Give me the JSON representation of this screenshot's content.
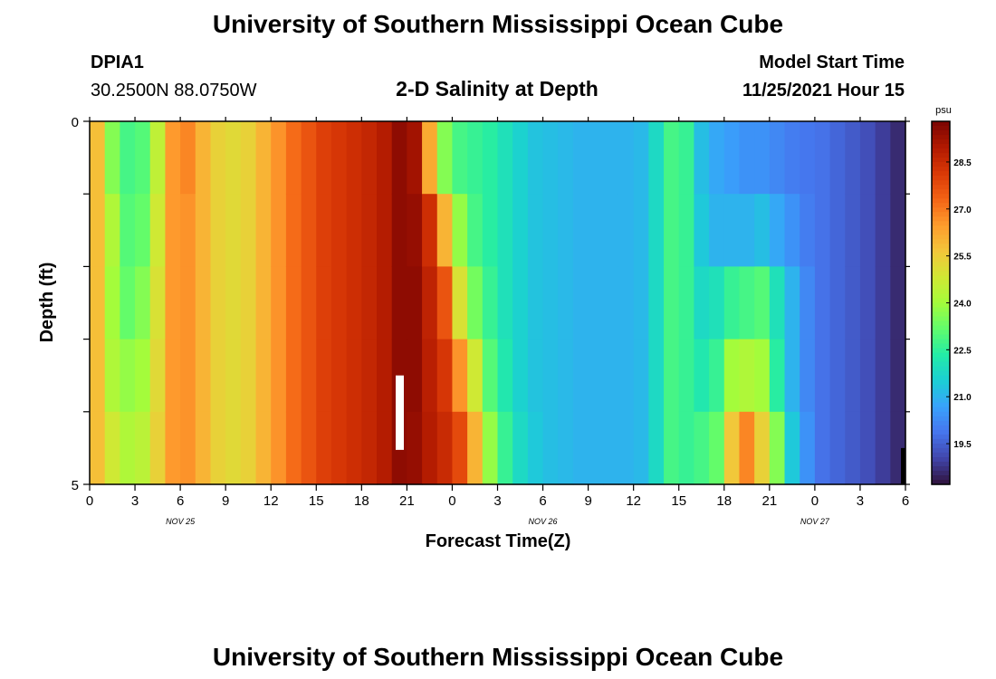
{
  "page": {
    "title": "University of Southern Mississippi Ocean Cube",
    "footer_title": "University of Southern Mississippi Ocean Cube"
  },
  "station": {
    "id": "DPIA1",
    "coords": "30.2500N  88.0750W"
  },
  "model": {
    "label": "Model Start Time",
    "start": "11/25/2021 Hour 15"
  },
  "colors": {
    "missing_bar": "#ffffff",
    "edge_bar": "#000000"
  },
  "chart_data": {
    "type": "heatmap",
    "title": "2-D Salinity at Depth",
    "xlabel": "Forecast Time(Z)",
    "ylabel": "Depth (ft)",
    "x_ticks": [
      "0",
      "3",
      "6",
      "9",
      "12",
      "15",
      "18",
      "21",
      "0",
      "3",
      "6",
      "9",
      "12",
      "15",
      "18",
      "21",
      "0",
      "3",
      "6"
    ],
    "date_labels": [
      {
        "text": "NOV 25",
        "tick_index": 2
      },
      {
        "text": "NOV 26",
        "tick_index": 10
      },
      {
        "text": "NOV 27",
        "tick_index": 16
      }
    ],
    "y_ticks": [
      "0",
      "5"
    ],
    "ylim": [
      0,
      5
    ],
    "x_hours": [
      0,
      54
    ],
    "depth_levels": 5,
    "colorbar": {
      "unit": "psu",
      "min": 18.2,
      "max": 29.8,
      "ticks": [
        "28.5",
        "27.0",
        "25.5",
        "24.0",
        "22.5",
        "21.0",
        "19.5"
      ],
      "colormap": [
        "#30123b",
        "#4145ab",
        "#4675ed",
        "#39a2fc",
        "#1bcfd4",
        "#24eca6",
        "#61fc6c",
        "#a4fc3b",
        "#d1e834",
        "#f3c63a",
        "#fe9b2d",
        "#f36315",
        "#d93806",
        "#b11901",
        "#7a0402"
      ]
    },
    "salinity_time_columns": [
      {
        "hour": 0,
        "values": [
          25.8,
          25.8,
          25.8,
          25.8,
          25.8
        ]
      },
      {
        "hour": 1,
        "values": [
          23.6,
          24.2,
          24.0,
          24.2,
          24.8
        ]
      },
      {
        "hour": 2,
        "values": [
          22.8,
          23.0,
          23.2,
          23.8,
          24.2
        ]
      },
      {
        "hour": 3,
        "values": [
          23.0,
          23.2,
          23.6,
          24.0,
          24.4
        ]
      },
      {
        "hour": 4,
        "values": [
          24.5,
          24.8,
          25.0,
          25.2,
          25.4
        ]
      },
      {
        "hour": 5,
        "values": [
          26.5,
          26.5,
          26.5,
          26.5,
          26.5
        ]
      },
      {
        "hour": 6,
        "values": [
          26.8,
          26.6,
          26.6,
          26.6,
          26.6
        ]
      },
      {
        "hour": 7,
        "values": [
          26.0,
          26.0,
          26.0,
          26.0,
          26.0
        ]
      },
      {
        "hour": 8,
        "values": [
          25.4,
          25.4,
          25.4,
          25.4,
          25.4
        ]
      },
      {
        "hour": 9,
        "values": [
          25.2,
          25.2,
          25.2,
          25.2,
          25.2
        ]
      },
      {
        "hour": 10,
        "values": [
          25.4,
          25.4,
          25.4,
          25.4,
          25.4
        ]
      },
      {
        "hour": 11,
        "values": [
          26.0,
          26.0,
          26.0,
          26.0,
          26.0
        ]
      },
      {
        "hour": 12,
        "values": [
          26.6,
          26.6,
          26.6,
          26.6,
          26.6
        ]
      },
      {
        "hour": 13,
        "values": [
          27.2,
          27.2,
          27.2,
          27.2,
          27.2
        ]
      },
      {
        "hour": 14,
        "values": [
          27.6,
          27.6,
          27.6,
          27.6,
          27.6
        ]
      },
      {
        "hour": 15,
        "values": [
          28.0,
          28.0,
          28.0,
          28.0,
          28.0
        ]
      },
      {
        "hour": 16,
        "values": [
          28.2,
          28.2,
          28.2,
          28.2,
          28.2
        ]
      },
      {
        "hour": 17,
        "values": [
          28.4,
          28.4,
          28.4,
          28.4,
          28.4
        ]
      },
      {
        "hour": 18,
        "values": [
          28.6,
          28.6,
          28.6,
          28.6,
          28.6
        ]
      },
      {
        "hour": 19,
        "values": [
          28.9,
          28.9,
          28.9,
          28.9,
          28.9
        ]
      },
      {
        "hour": 20,
        "values": [
          29.5,
          29.5,
          29.5,
          29.5,
          29.5
        ]
      },
      {
        "hour": 21,
        "values": [
          29.2,
          29.4,
          29.5,
          29.5,
          29.4
        ]
      },
      {
        "hour": 22,
        "values": [
          26.2,
          28.4,
          28.7,
          28.8,
          28.9
        ]
      },
      {
        "hour": 23,
        "values": [
          23.6,
          26.0,
          27.6,
          28.2,
          28.5
        ]
      },
      {
        "hour": 24,
        "values": [
          22.8,
          23.8,
          25.0,
          26.6,
          27.8
        ]
      },
      {
        "hour": 25,
        "values": [
          22.6,
          22.8,
          23.4,
          24.8,
          26.0
        ]
      },
      {
        "hour": 26,
        "values": [
          22.4,
          22.4,
          22.6,
          23.0,
          23.8
        ]
      },
      {
        "hour": 27,
        "values": [
          22.0,
          22.0,
          22.0,
          22.2,
          22.6
        ]
      },
      {
        "hour": 28,
        "values": [
          21.6,
          21.6,
          21.6,
          21.6,
          21.8
        ]
      },
      {
        "hour": 29,
        "values": [
          21.3,
          21.3,
          21.3,
          21.3,
          21.4
        ]
      },
      {
        "hour": 30,
        "values": [
          21.2,
          21.2,
          21.2,
          21.2,
          21.2
        ]
      },
      {
        "hour": 31,
        "values": [
          21.1,
          21.1,
          21.1,
          21.1,
          21.1
        ]
      },
      {
        "hour": 32,
        "values": [
          21.0,
          21.0,
          21.0,
          21.0,
          21.0
        ]
      },
      {
        "hour": 33,
        "values": [
          21.0,
          21.0,
          21.0,
          21.0,
          21.0
        ]
      },
      {
        "hour": 34,
        "values": [
          21.0,
          21.0,
          21.0,
          21.0,
          21.0
        ]
      },
      {
        "hour": 35,
        "values": [
          21.0,
          21.0,
          21.0,
          21.0,
          21.0
        ]
      },
      {
        "hour": 36,
        "values": [
          21.1,
          21.1,
          21.1,
          21.1,
          21.1
        ]
      },
      {
        "hour": 37,
        "values": [
          21.8,
          21.8,
          21.8,
          21.8,
          21.8
        ]
      },
      {
        "hour": 38,
        "values": [
          22.8,
          22.8,
          22.8,
          22.8,
          22.8
        ]
      },
      {
        "hour": 39,
        "values": [
          22.6,
          22.6,
          22.6,
          22.6,
          22.6
        ]
      },
      {
        "hour": 40,
        "values": [
          21.2,
          21.4,
          21.8,
          22.2,
          22.8
        ]
      },
      {
        "hour": 41,
        "values": [
          20.8,
          21.0,
          22.0,
          22.6,
          23.2
        ]
      },
      {
        "hour": 42,
        "values": [
          20.6,
          21.0,
          22.6,
          24.0,
          25.6
        ]
      },
      {
        "hour": 43,
        "values": [
          20.4,
          21.0,
          22.8,
          24.2,
          26.8
        ]
      },
      {
        "hour": 44,
        "values": [
          20.4,
          21.2,
          23.0,
          24.0,
          25.4
        ]
      },
      {
        "hour": 45,
        "values": [
          20.2,
          20.8,
          22.0,
          22.4,
          23.6
        ]
      },
      {
        "hour": 46,
        "values": [
          20.0,
          20.4,
          21.0,
          21.0,
          21.4
        ]
      },
      {
        "hour": 47,
        "values": [
          19.9,
          20.0,
          20.2,
          20.2,
          20.4
        ]
      },
      {
        "hour": 48,
        "values": [
          19.8,
          19.8,
          19.8,
          19.8,
          19.8
        ]
      },
      {
        "hour": 49,
        "values": [
          19.6,
          19.6,
          19.6,
          19.6,
          19.6
        ]
      },
      {
        "hour": 50,
        "values": [
          19.4,
          19.4,
          19.4,
          19.4,
          19.4
        ]
      },
      {
        "hour": 51,
        "values": [
          19.2,
          19.2,
          19.2,
          19.2,
          19.2
        ]
      },
      {
        "hour": 52,
        "values": [
          18.9,
          18.9,
          18.9,
          18.9,
          18.9
        ]
      },
      {
        "hour": 53,
        "values": [
          18.6,
          18.6,
          18.6,
          18.6,
          18.6
        ]
      }
    ]
  }
}
